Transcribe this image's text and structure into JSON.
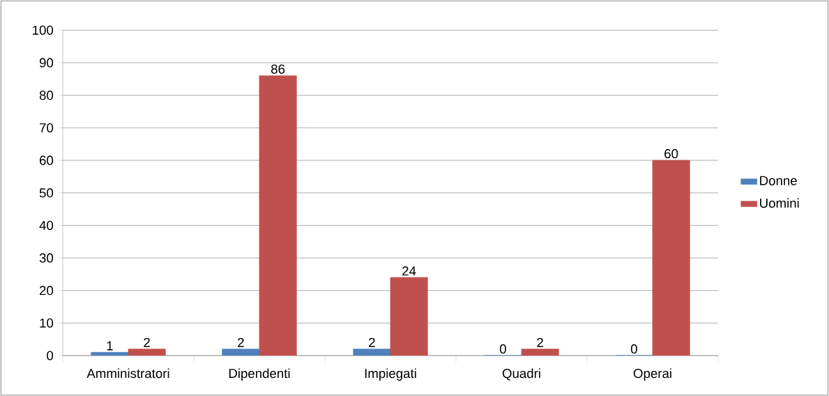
{
  "chart_data": {
    "type": "bar",
    "categories": [
      "Amministratori",
      "Dipendenti",
      "Impiegati",
      "Quadri",
      "Operai"
    ],
    "series": [
      {
        "name": "Donne",
        "color": "#4f81bd",
        "values": [
          1,
          2,
          2,
          0,
          0
        ]
      },
      {
        "name": "Uomini",
        "color": "#c0504d",
        "values": [
          2,
          86,
          24,
          2,
          60
        ]
      }
    ],
    "ylim": [
      0,
      100
    ],
    "yticks": [
      0,
      10,
      20,
      30,
      40,
      50,
      60,
      70,
      80,
      90,
      100
    ],
    "grid": "y",
    "legend": "right",
    "data_labels": true
  }
}
